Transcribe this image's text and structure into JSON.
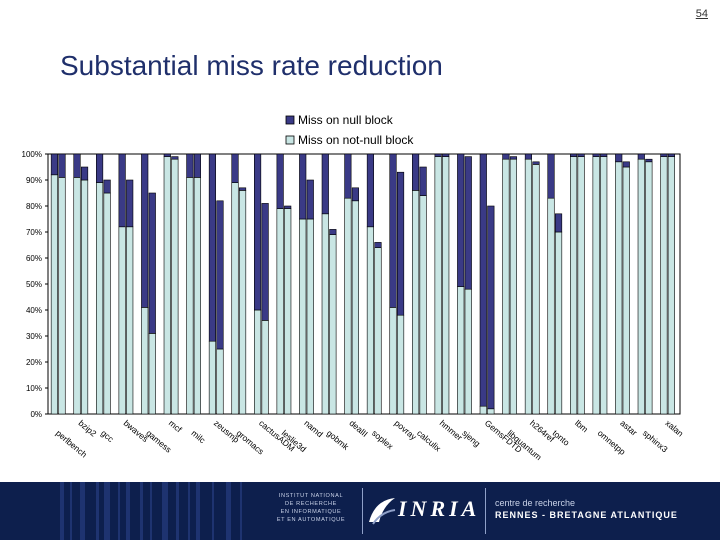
{
  "page_number": "54",
  "slide_title": "Substantial miss rate reduction",
  "chart_data": {
    "type": "bar",
    "stacked": true,
    "ylim": [
      0,
      100
    ],
    "yticks": [
      "0%",
      "10%",
      "20%",
      "30%",
      "40%",
      "50%",
      "60%",
      "70%",
      "80%",
      "90%",
      "100%"
    ],
    "legend": [
      {
        "label": "Miss on null block",
        "color": "#3a3a86"
      },
      {
        "label": "Miss on not-null block",
        "color": "#c9e6e4"
      }
    ],
    "categories": [
      "perlbench",
      "bzip2",
      "gcc",
      "bwaves",
      "gamess",
      "mcf",
      "milc",
      "zeusmp",
      "gromacs",
      "cactusADM",
      "leslie3d",
      "namd",
      "gobmk",
      "dealII",
      "soplex",
      "povray",
      "calculix",
      "hmmer",
      "sjeng",
      "GemsFDTD",
      "libquantum",
      "h264ref",
      "tonto",
      "lbm",
      "omnetpp",
      "astar",
      "sphinx3",
      "xalan"
    ],
    "label_rows": [
      1,
      0,
      1,
      0,
      1,
      0,
      1,
      0,
      1,
      0,
      1,
      0,
      1,
      0,
      1,
      0,
      1,
      0,
      1,
      0,
      1,
      0,
      1,
      0,
      1,
      0,
      1,
      0
    ],
    "pairs": [
      [
        {
          "null": 8,
          "notnull": 92
        },
        {
          "null": 9,
          "notnull": 91
        }
      ],
      [
        {
          "null": 9,
          "notnull": 91
        },
        {
          "null": 5,
          "notnull": 90
        }
      ],
      [
        {
          "null": 11,
          "notnull": 89
        },
        {
          "null": 5,
          "notnull": 85
        }
      ],
      [
        {
          "null": 28,
          "notnull": 72
        },
        {
          "null": 18,
          "notnull": 72
        }
      ],
      [
        {
          "null": 59,
          "notnull": 41
        },
        {
          "null": 54,
          "notnull": 31
        }
      ],
      [
        {
          "null": 1,
          "notnull": 99
        },
        {
          "null": 1,
          "notnull": 98
        }
      ],
      [
        {
          "null": 9,
          "notnull": 91
        },
        {
          "null": 9,
          "notnull": 91
        }
      ],
      [
        {
          "null": 72,
          "notnull": 28
        },
        {
          "null": 57,
          "notnull": 25
        }
      ],
      [
        {
          "null": 11,
          "notnull": 89
        },
        {
          "null": 1,
          "notnull": 86
        }
      ],
      [
        {
          "null": 60,
          "notnull": 40
        },
        {
          "null": 45,
          "notnull": 36
        }
      ],
      [
        {
          "null": 21,
          "notnull": 79
        },
        {
          "null": 1,
          "notnull": 79
        }
      ],
      [
        {
          "null": 25,
          "notnull": 75
        },
        {
          "null": 15,
          "notnull": 75
        }
      ],
      [
        {
          "null": 23,
          "notnull": 77
        },
        {
          "null": 2,
          "notnull": 69
        }
      ],
      [
        {
          "null": 17,
          "notnull": 83
        },
        {
          "null": 5,
          "notnull": 82
        }
      ],
      [
        {
          "null": 28,
          "notnull": 72
        },
        {
          "null": 2,
          "notnull": 64
        }
      ],
      [
        {
          "null": 59,
          "notnull": 41
        },
        {
          "null": 55,
          "notnull": 38
        }
      ],
      [
        {
          "null": 14,
          "notnull": 86
        },
        {
          "null": 11,
          "notnull": 84
        }
      ],
      [
        {
          "null": 1,
          "notnull": 99
        },
        {
          "null": 1,
          "notnull": 99
        }
      ],
      [
        {
          "null": 51,
          "notnull": 49
        },
        {
          "null": 51,
          "notnull": 48
        }
      ],
      [
        {
          "null": 97,
          "notnull": 3
        },
        {
          "null": 78,
          "notnull": 2
        }
      ],
      [
        {
          "null": 2,
          "notnull": 98
        },
        {
          "null": 1,
          "notnull": 98
        }
      ],
      [
        {
          "null": 2,
          "notnull": 98
        },
        {
          "null": 1,
          "notnull": 96
        }
      ],
      [
        {
          "null": 17,
          "notnull": 83
        },
        {
          "null": 7,
          "notnull": 70
        }
      ],
      [
        {
          "null": 1,
          "notnull": 99
        },
        {
          "null": 1,
          "notnull": 99
        }
      ],
      [
        {
          "null": 1,
          "notnull": 99
        },
        {
          "null": 1,
          "notnull": 99
        }
      ],
      [
        {
          "null": 3,
          "notnull": 97
        },
        {
          "null": 2,
          "notnull": 95
        }
      ],
      [
        {
          "null": 2,
          "notnull": 98
        },
        {
          "null": 1,
          "notnull": 97
        }
      ],
      [
        {
          "null": 1,
          "notnull": 99
        },
        {
          "null": 1,
          "notnull": 99
        }
      ]
    ]
  },
  "footer": {
    "institute_lines": [
      "INSTITUT NATIONAL",
      "DE RECHERCHE",
      "EN INFORMATIQUE",
      "ET EN AUTOMATIQUE"
    ],
    "logo_text": "INRIA",
    "centre_line": "centre de recherche",
    "centre_name": "RENNES - BRETAGNE ATLANTIQUE"
  }
}
